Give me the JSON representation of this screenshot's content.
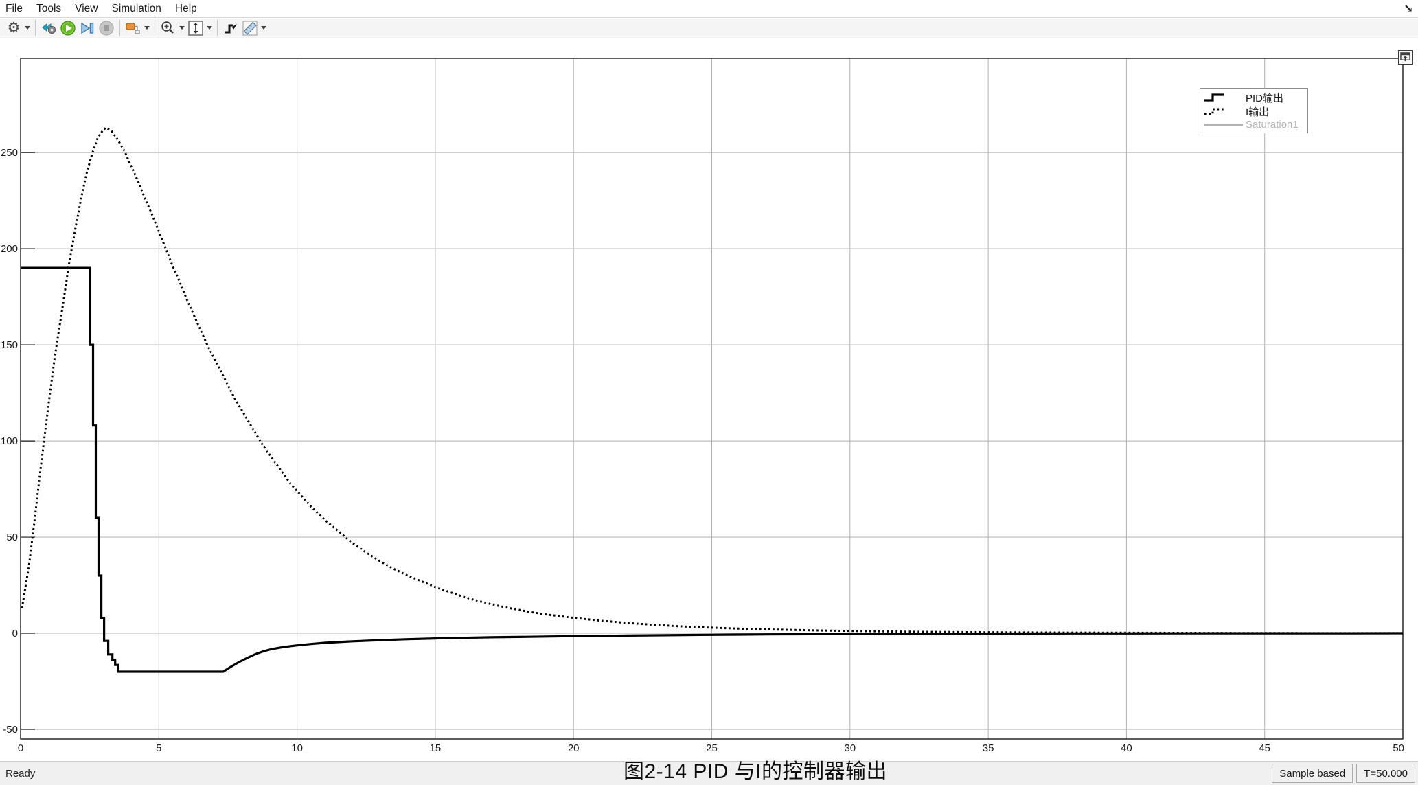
{
  "menu": {
    "items": [
      "File",
      "Tools",
      "View",
      "Simulation",
      "Help"
    ]
  },
  "toolbar": {
    "buttons": [
      {
        "icon": "settings-gear-icon",
        "dropdown": true
      },
      {
        "icon": "show-simulink-block-icon"
      },
      {
        "icon": "run-icon"
      },
      {
        "icon": "step-forward-icon"
      },
      {
        "icon": "stop-icon",
        "disabled": true
      },
      {
        "icon": "signal-blocks-icon",
        "dropdown": true
      },
      {
        "icon": "zoom-icon",
        "dropdown": true
      },
      {
        "icon": "fit-to-view-icon",
        "dropdown": true
      },
      {
        "icon": "trigger-icon"
      },
      {
        "icon": "measurements-ruler-icon",
        "dropdown": true
      }
    ]
  },
  "chart_data": {
    "type": "line",
    "title": "",
    "xlabel": "",
    "ylabel": "",
    "xlim": [
      0,
      50
    ],
    "ylim": [
      -55,
      299
    ],
    "x_ticks": [
      0,
      5,
      10,
      15,
      20,
      25,
      30,
      35,
      40,
      45,
      50
    ],
    "y_ticks": [
      -50,
      0,
      50,
      100,
      150,
      200,
      250
    ],
    "grid": true,
    "grid_color": "#b0b0b0",
    "legend_position": "top-right",
    "series": [
      {
        "name": "PID输出",
        "style": "solid",
        "color": "#000000",
        "width": 3.2,
        "hidden": false,
        "points": [
          [
            0,
            190
          ],
          [
            2.5,
            190
          ],
          [
            2.5,
            150
          ],
          [
            2.62,
            150
          ],
          [
            2.62,
            108
          ],
          [
            2.72,
            108
          ],
          [
            2.72,
            60
          ],
          [
            2.82,
            60
          ],
          [
            2.82,
            30
          ],
          [
            2.92,
            30
          ],
          [
            2.92,
            8
          ],
          [
            3.02,
            8
          ],
          [
            3.02,
            -4
          ],
          [
            3.17,
            -4
          ],
          [
            3.17,
            -11
          ],
          [
            3.32,
            -11
          ],
          [
            3.32,
            -14
          ],
          [
            3.42,
            -14
          ],
          [
            3.42,
            -16.5
          ],
          [
            3.52,
            -16.5
          ],
          [
            3.52,
            -20
          ],
          [
            7.33,
            -20
          ],
          [
            7.6,
            -17.5
          ],
          [
            7.9,
            -15
          ],
          [
            8.2,
            -12.8
          ],
          [
            8.5,
            -10.8
          ],
          [
            8.8,
            -9.3
          ],
          [
            9.1,
            -8.2
          ],
          [
            9.5,
            -7.2
          ],
          [
            10,
            -6.3
          ],
          [
            10.5,
            -5.6
          ],
          [
            11,
            -5
          ],
          [
            12,
            -4.2
          ],
          [
            13,
            -3.6
          ],
          [
            14,
            -3.1
          ],
          [
            15,
            -2.7
          ],
          [
            16,
            -2.4
          ],
          [
            17,
            -2.1
          ],
          [
            18,
            -1.9
          ],
          [
            19,
            -1.7
          ],
          [
            20,
            -1.5
          ],
          [
            21,
            -1.35
          ],
          [
            22,
            -1.2
          ],
          [
            23,
            -1.05
          ],
          [
            24,
            -0.9
          ],
          [
            25,
            -0.8
          ],
          [
            26,
            -0.7
          ],
          [
            27,
            -0.6
          ],
          [
            28,
            -0.52
          ],
          [
            29,
            -0.45
          ],
          [
            30,
            -0.4
          ],
          [
            32,
            -0.3
          ],
          [
            34,
            -0.22
          ],
          [
            36,
            -0.16
          ],
          [
            38,
            -0.11
          ],
          [
            40,
            -0.08
          ],
          [
            42,
            -0.05
          ],
          [
            44,
            -0.03
          ],
          [
            46,
            -0.02
          ],
          [
            48,
            -0.01
          ],
          [
            50,
            0
          ]
        ]
      },
      {
        "name": "I输出",
        "style": "dotted",
        "color": "#000000",
        "width": 3,
        "hidden": false,
        "points": [
          [
            0.05,
            13
          ],
          [
            0.3,
            35
          ],
          [
            0.5,
            58
          ],
          [
            0.7,
            83
          ],
          [
            1,
            118
          ],
          [
            1.25,
            145
          ],
          [
            1.5,
            168
          ],
          [
            1.75,
            192
          ],
          [
            2,
            212
          ],
          [
            2.2,
            227
          ],
          [
            2.4,
            240
          ],
          [
            2.6,
            250
          ],
          [
            2.8,
            258
          ],
          [
            3,
            262
          ],
          [
            3.1,
            263
          ],
          [
            3.3,
            261
          ],
          [
            3.5,
            257
          ],
          [
            3.75,
            251
          ],
          [
            4,
            243
          ],
          [
            4.25,
            235
          ],
          [
            4.5,
            226
          ],
          [
            4.75,
            218
          ],
          [
            5,
            209
          ],
          [
            5.25,
            200
          ],
          [
            5.5,
            191
          ],
          [
            5.75,
            183
          ],
          [
            6,
            174
          ],
          [
            6.25,
            166
          ],
          [
            6.5,
            158
          ],
          [
            6.75,
            150
          ],
          [
            7,
            143
          ],
          [
            7.25,
            136
          ],
          [
            7.5,
            129
          ],
          [
            7.75,
            122
          ],
          [
            8,
            116
          ],
          [
            8.25,
            110
          ],
          [
            8.5,
            104
          ],
          [
            8.75,
            98
          ],
          [
            9,
            93
          ],
          [
            9.25,
            88
          ],
          [
            9.5,
            83
          ],
          [
            9.75,
            78
          ],
          [
            10,
            74
          ],
          [
            10.5,
            66
          ],
          [
            11,
            59
          ],
          [
            11.5,
            53
          ],
          [
            12,
            47
          ],
          [
            12.5,
            42
          ],
          [
            13,
            37.5
          ],
          [
            13.5,
            33.5
          ],
          [
            14,
            30
          ],
          [
            14.5,
            27
          ],
          [
            15,
            24
          ],
          [
            15.5,
            21.5
          ],
          [
            16,
            19
          ],
          [
            16.5,
            17
          ],
          [
            17,
            15.2
          ],
          [
            17.5,
            13.6
          ],
          [
            18,
            12.2
          ],
          [
            18.5,
            10.9
          ],
          [
            19,
            9.8
          ],
          [
            19.5,
            8.9
          ],
          [
            20,
            8
          ],
          [
            21,
            6.5
          ],
          [
            22,
            5.3
          ],
          [
            23,
            4.3
          ],
          [
            24,
            3.5
          ],
          [
            25,
            2.9
          ],
          [
            26,
            2.4
          ],
          [
            27,
            2
          ],
          [
            28,
            1.7
          ],
          [
            29,
            1.4
          ],
          [
            30,
            1.2
          ],
          [
            31,
            1
          ],
          [
            32,
            0.85
          ],
          [
            33,
            0.7
          ],
          [
            34,
            0.6
          ],
          [
            35,
            0.5
          ],
          [
            36,
            0.45
          ],
          [
            37,
            0.38
          ],
          [
            38,
            0.33
          ],
          [
            39,
            0.28
          ],
          [
            40,
            0.25
          ],
          [
            42,
            0.18
          ],
          [
            44,
            0.13
          ],
          [
            46,
            0.09
          ],
          [
            48,
            0.06
          ],
          [
            50,
            0.04
          ]
        ]
      },
      {
        "name": "Saturation1",
        "style": "solid",
        "color": "#b4b4b4",
        "width": 3,
        "hidden": true,
        "points": []
      }
    ]
  },
  "status_bar": {
    "ready": "Ready",
    "sample_mode": "Sample based",
    "time": "T=50.000"
  },
  "caption": "图2-14 PID 与I的控制器输出"
}
